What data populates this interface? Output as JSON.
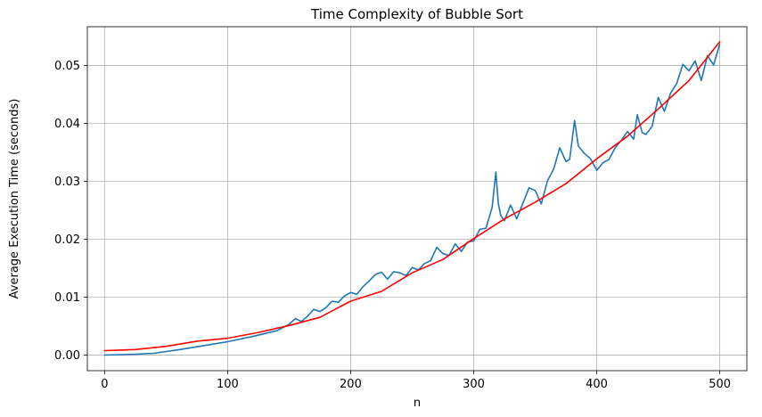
{
  "chart_data": {
    "type": "line",
    "title": "Time Complexity of Bubble Sort",
    "xlabel": "n",
    "ylabel": "Average Execution Time (seconds)",
    "xlim": [
      -14,
      522
    ],
    "ylim": [
      -0.0027,
      0.0567
    ],
    "x_ticks": [
      0,
      100,
      200,
      300,
      400,
      500
    ],
    "x_tick_labels": [
      "0",
      "100",
      "200",
      "300",
      "400",
      "500"
    ],
    "y_ticks": [
      0.0,
      0.01,
      0.02,
      0.03,
      0.04,
      0.05
    ],
    "y_tick_labels": [
      "0.00",
      "0.01",
      "0.02",
      "0.03",
      "0.04",
      "0.05"
    ],
    "grid": true,
    "series": [
      {
        "style": "measured",
        "color": "#1f77b4",
        "x": [
          0,
          20,
          40,
          60,
          80,
          100,
          120,
          140,
          150,
          155,
          160,
          165,
          170,
          175,
          180,
          185,
          190,
          195,
          200,
          205,
          210,
          215,
          220,
          225,
          230,
          235,
          240,
          245,
          250,
          255,
          260,
          265,
          270,
          275,
          280,
          285,
          290,
          295,
          300,
          305,
          310,
          315,
          318,
          320,
          322,
          325,
          330,
          335,
          340,
          345,
          350,
          355,
          360,
          365,
          370,
          375,
          378,
          382,
          385,
          390,
          395,
          400,
          405,
          410,
          415,
          420,
          425,
          430,
          433,
          437,
          440,
          445,
          450,
          455,
          460,
          465,
          470,
          475,
          480,
          485,
          490,
          495,
          500
        ],
        "y": [
          0.0,
          0.0001,
          0.0003,
          0.0009,
          0.0016,
          0.0023,
          0.0032,
          0.0042,
          0.0053,
          0.0063,
          0.0058,
          0.0067,
          0.0079,
          0.0075,
          0.0082,
          0.0093,
          0.0091,
          0.0102,
          0.0108,
          0.0105,
          0.0118,
          0.0128,
          0.0139,
          0.0143,
          0.0131,
          0.0144,
          0.0142,
          0.0137,
          0.0151,
          0.0147,
          0.0158,
          0.0163,
          0.0186,
          0.0175,
          0.0172,
          0.0192,
          0.0179,
          0.0195,
          0.0197,
          0.0217,
          0.0219,
          0.0255,
          0.0316,
          0.0262,
          0.0241,
          0.0232,
          0.0259,
          0.0235,
          0.0262,
          0.0289,
          0.0284,
          0.0261,
          0.0301,
          0.0321,
          0.0358,
          0.0334,
          0.0338,
          0.0405,
          0.0361,
          0.0348,
          0.0339,
          0.0319,
          0.0332,
          0.0338,
          0.0358,
          0.0371,
          0.0386,
          0.0373,
          0.0415,
          0.0384,
          0.0381,
          0.0395,
          0.0445,
          0.0421,
          0.0452,
          0.0469,
          0.0502,
          0.0491,
          0.0508,
          0.0474,
          0.0517,
          0.0501,
          0.0537
        ]
      },
      {
        "style": "fit",
        "color": "#ff0000",
        "x": [
          0,
          25,
          50,
          75,
          100,
          125,
          150,
          175,
          200,
          225,
          250,
          275,
          300,
          325,
          350,
          375,
          400,
          425,
          450,
          475,
          500
        ],
        "y": [
          0.00077,
          0.00095,
          0.0015,
          0.0024,
          0.0029,
          0.0039,
          0.0051,
          0.0065,
          0.0093,
          0.011,
          0.0142,
          0.0165,
          0.0201,
          0.0235,
          0.0264,
          0.0296,
          0.0339,
          0.0378,
          0.0425,
          0.0474,
          0.0541
        ]
      }
    ]
  }
}
